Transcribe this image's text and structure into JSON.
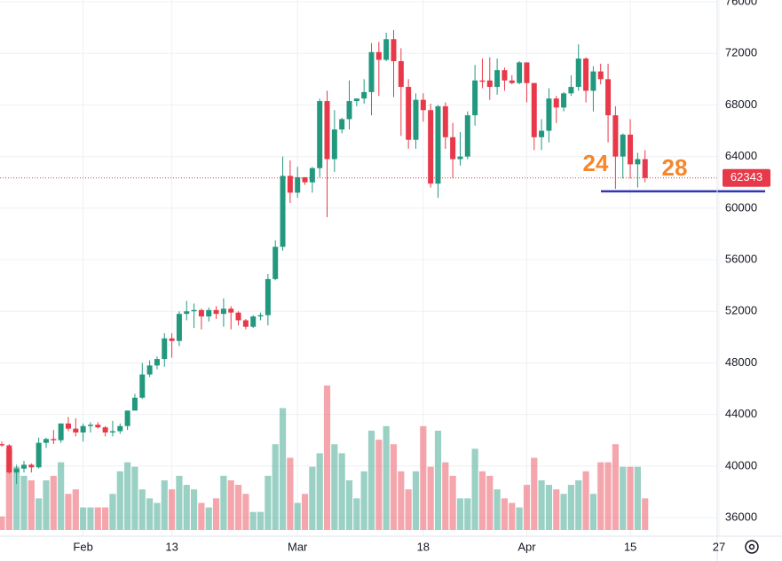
{
  "chart_data": {
    "type": "candlestick",
    "categories": [
      null,
      null,
      null,
      null,
      null,
      null,
      null,
      null,
      null,
      null,
      null,
      "Feb",
      null,
      null,
      null,
      null,
      null,
      null,
      null,
      null,
      null,
      null,
      null,
      "13",
      null,
      null,
      null,
      null,
      null,
      null,
      null,
      null,
      null,
      null,
      null,
      null,
      null,
      null,
      null,
      null,
      "Mar",
      null,
      null,
      null,
      null,
      null,
      null,
      null,
      null,
      null,
      null,
      null,
      null,
      null,
      null,
      null,
      null,
      "18",
      null,
      null,
      null,
      null,
      null,
      null,
      null,
      null,
      null,
      null,
      null,
      null,
      null,
      "Apr",
      null,
      null,
      null,
      null,
      null,
      null,
      null,
      null,
      null,
      null,
      null,
      null,
      null,
      "15",
      null,
      null,
      null,
      null,
      null,
      null,
      null,
      null,
      null,
      null,
      null,
      "27"
    ],
    "open": [
      41700,
      41600,
      39500,
      39800,
      40100,
      39900,
      41800,
      42100,
      42000,
      43300,
      42900,
      42600,
      43100,
      43200,
      43000,
      42600,
      42700,
      43100,
      44300,
      45300,
      47100,
      47800,
      48300,
      49900,
      49700,
      51800,
      52000,
      52100,
      51600,
      52100,
      51800,
      52200,
      51900,
      51300,
      50800,
      51600,
      51700,
      54500,
      57000,
      62500,
      61200,
      62400,
      62000,
      63100,
      68300,
      63800,
      66100,
      66900,
      68300,
      68500,
      69000,
      72100,
      71500,
      73100,
      71400,
      69400,
      65300,
      68400,
      67600,
      61900,
      67900,
      65500,
      63800,
      64000,
      67200,
      69900,
      69900,
      69400,
      70700,
      69900,
      69700,
      71300,
      69700,
      65500,
      66000,
      68500,
      67800,
      68900,
      69400,
      71600,
      69100,
      70600,
      70000,
      67200,
      64000,
      65700,
      63400,
      63800,
      null,
      null,
      null,
      null,
      null,
      null,
      null,
      null,
      null,
      null
    ],
    "high": [
      41900,
      41700,
      40100,
      40400,
      40200,
      42200,
      42200,
      42800,
      43300,
      43800,
      43700,
      43300,
      43400,
      43400,
      43100,
      43500,
      43300,
      44300,
      45600,
      48000,
      48200,
      48500,
      50300,
      50300,
      52000,
      52800,
      52600,
      52200,
      52300,
      52400,
      53000,
      52400,
      52000,
      51400,
      51700,
      51900,
      54900,
      57500,
      64000,
      63700,
      63200,
      62400,
      63200,
      68500,
      69100,
      67600,
      67000,
      69900,
      68500,
      70000,
      72800,
      72900,
      73600,
      73800,
      72400,
      70000,
      68900,
      68900,
      68100,
      68000,
      68200,
      66600,
      65900,
      67500,
      71100,
      71600,
      71700,
      71600,
      70900,
      70300,
      71400,
      71300,
      69700,
      66900,
      69300,
      68700,
      69000,
      70300,
      72700,
      71700,
      71000,
      71200,
      71200,
      67900,
      65800,
      66900,
      64300,
      64500,
      null,
      null,
      null,
      null,
      null,
      null,
      null,
      null,
      null,
      null
    ],
    "low": [
      41500,
      39400,
      38600,
      39500,
      39500,
      39800,
      41400,
      41700,
      41800,
      42700,
      42300,
      41900,
      42600,
      42900,
      42300,
      42300,
      42500,
      42800,
      44300,
      45200,
      46900,
      47500,
      47700,
      48400,
      49300,
      51300,
      50700,
      50600,
      51200,
      51400,
      50800,
      50600,
      50900,
      50600,
      50700,
      51300,
      50900,
      54400,
      56700,
      60400,
      60800,
      61800,
      61200,
      62400,
      59300,
      62800,
      65800,
      66100,
      67900,
      68100,
      67200,
      68700,
      71400,
      68600,
      65600,
      64600,
      64600,
      66700,
      61600,
      60800,
      64600,
      62300,
      63300,
      63800,
      66400,
      69300,
      68400,
      68800,
      69100,
      69600,
      69600,
      68200,
      64500,
      64500,
      65100,
      66600,
      67500,
      68700,
      69100,
      68200,
      67500,
      69600,
      65100,
      61500,
      62300,
      62300,
      61600,
      62000,
      null,
      null,
      null,
      null,
      null,
      null,
      null,
      null,
      null,
      null
    ],
    "close": [
      41600,
      39500,
      39800,
      40100,
      39900,
      41800,
      42100,
      42000,
      43300,
      42900,
      42600,
      43100,
      43200,
      43000,
      42600,
      42700,
      43100,
      44300,
      45300,
      47100,
      47800,
      48300,
      49900,
      49700,
      51800,
      52000,
      52100,
      51600,
      52100,
      51800,
      52200,
      51900,
      51300,
      50800,
      51600,
      51700,
      54500,
      57000,
      62500,
      61200,
      62400,
      62000,
      63100,
      68300,
      63800,
      66100,
      66900,
      68300,
      68500,
      69000,
      72100,
      71500,
      73100,
      71400,
      69400,
      65300,
      68400,
      67600,
      61900,
      67900,
      65500,
      63800,
      64000,
      67200,
      69900,
      69800,
      69400,
      70700,
      69900,
      69700,
      71300,
      69700,
      65500,
      66000,
      68500,
      67800,
      68900,
      69400,
      71600,
      69100,
      70600,
      70000,
      67200,
      64000,
      65700,
      63400,
      63800,
      62343,
      null,
      null,
      null,
      null,
      null,
      null,
      null,
      null,
      null,
      null
    ],
    "volume": [
      15,
      90,
      70,
      60,
      55,
      35,
      55,
      60,
      75,
      40,
      45,
      25,
      25,
      25,
      25,
      40,
      65,
      75,
      70,
      45,
      35,
      30,
      55,
      45,
      60,
      50,
      45,
      30,
      25,
      35,
      60,
      55,
      50,
      40,
      20,
      20,
      60,
      95,
      135,
      80,
      30,
      40,
      70,
      85,
      160,
      95,
      85,
      55,
      35,
      65,
      110,
      100,
      115,
      95,
      65,
      45,
      65,
      115,
      70,
      110,
      75,
      60,
      35,
      35,
      90,
      65,
      60,
      45,
      35,
      30,
      25,
      50,
      80,
      55,
      50,
      45,
      40,
      50,
      55,
      65,
      40,
      75,
      75,
      95,
      70,
      70,
      70,
      35,
      null,
      null,
      null,
      null,
      null,
      null,
      null,
      null,
      null,
      null
    ],
    "up_color": "#22997f",
    "down_color": "#e8394a",
    "ylim": [
      34560,
      76140
    ],
    "yticks": [
      36000,
      40000,
      44000,
      48000,
      52000,
      56000,
      60000,
      64000,
      68000,
      72000,
      76000
    ],
    "grid": true,
    "last_price": 62343,
    "support_level": 61300,
    "support_color": "#2f35b5",
    "annotations": [
      "24",
      "28"
    ],
    "annotation_color": "#f7862a"
  }
}
